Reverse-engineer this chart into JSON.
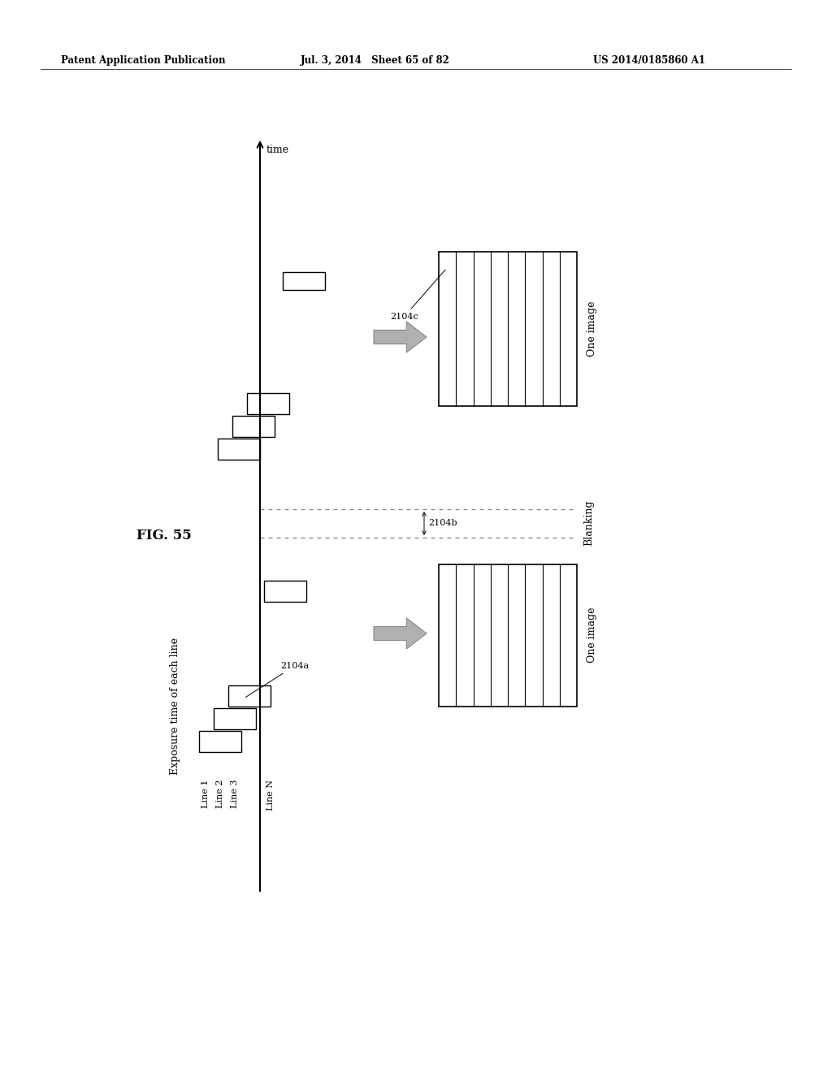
{
  "header_left": "Patent Application Publication",
  "header_mid": "Jul. 3, 2014   Sheet 65 of 82",
  "header_right": "US 2014/0185860 A1",
  "fig_label": "FIG. 55",
  "time_label": "time",
  "axis_x_label": "Exposure time of each line",
  "line_labels": [
    "Line 1",
    "Line 2",
    "Line 3",
    "Line N"
  ],
  "label_2104a": "2104a",
  "label_2104b": "2104b",
  "label_2104c": "2104c",
  "blanking_label": "Blanking",
  "one_image_label": "One image",
  "bg_color": "#ffffff"
}
